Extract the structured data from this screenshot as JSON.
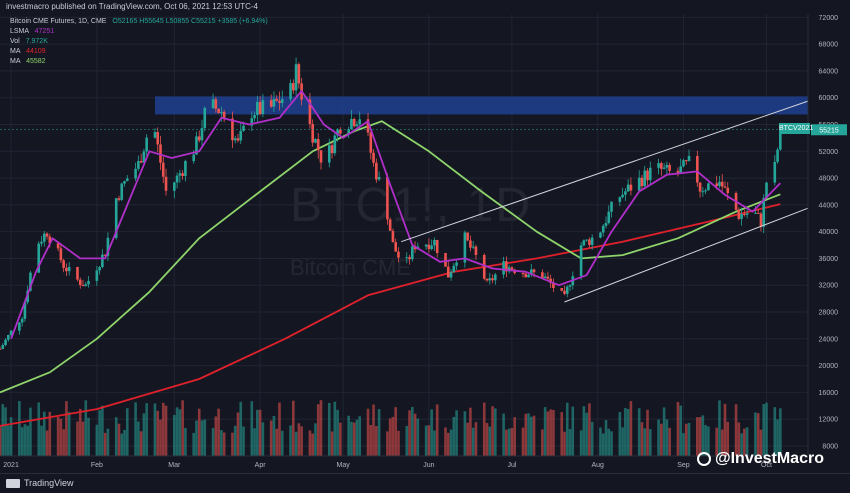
{
  "header": {
    "published": "investmacro published on TradingView.com, Oct 06, 2021 12:53 UTC-4"
  },
  "legend": {
    "title": "Bitcoin CME Futures, 1D, CME",
    "ohlc": "O52165 H55645 L50855 C55215 +3585 (+6.94%)",
    "lsma_label": "LSMA",
    "lsma_value": "47251",
    "vol_label": "Vol",
    "vol_value": "7.972K",
    "ma1_label": "MA",
    "ma1_value": "44109",
    "ma2_label": "MA",
    "ma2_value": "45582"
  },
  "watermark": {
    "symbol": "BTC1!, 1D",
    "name": "Bitcoin CME"
  },
  "price_tag": "BTCV2021",
  "brand": "@InvestMacro",
  "footer": {
    "logo_text": "TradingView"
  },
  "colors": {
    "background": "#141722",
    "up_candle": "#26a69a",
    "down_candle": "#ef5350",
    "lsma": "#b02fc9",
    "ma_fast": "#8fd46b",
    "ma_slow": "#e0212b",
    "resistance_box": "#1e3f8f",
    "channel": "#d1d4dc"
  },
  "chart_data": {
    "type": "candlestick",
    "x_ticks": [
      "2021",
      "Feb",
      "Mar",
      "Apr",
      "May",
      "Jun",
      "Jul",
      "Aug",
      "Sep",
      "Oct"
    ],
    "y_ticks": [
      8000,
      12000,
      16000,
      20000,
      24000,
      28000,
      32000,
      36000,
      40000,
      44000,
      48000,
      52000,
      56000,
      60000,
      64000,
      68000,
      72000
    ],
    "ylim": [
      6500,
      72500
    ],
    "last_price": 55215,
    "resistance_zone": [
      57500,
      60200
    ],
    "price_path": [
      {
        "d": "2020-12-28",
        "p": 22500
      },
      {
        "d": "2021-01-05",
        "p": 27500
      },
      {
        "d": "2021-01-10",
        "p": 38000
      },
      {
        "d": "2021-01-14",
        "p": 40000
      },
      {
        "d": "2021-01-20",
        "p": 35000
      },
      {
        "d": "2021-01-24",
        "p": 33000
      },
      {
        "d": "2021-01-28",
        "p": 32000
      },
      {
        "d": "2021-02-04",
        "p": 37000
      },
      {
        "d": "2021-02-08",
        "p": 45000
      },
      {
        "d": "2021-02-12",
        "p": 48000
      },
      {
        "d": "2021-02-16",
        "p": 50000
      },
      {
        "d": "2021-02-21",
        "p": 57000
      },
      {
        "d": "2021-02-26",
        "p": 46000
      },
      {
        "d": "2021-03-02",
        "p": 48000
      },
      {
        "d": "2021-03-09",
        "p": 53000
      },
      {
        "d": "2021-03-13",
        "p": 59000
      },
      {
        "d": "2021-03-18",
        "p": 58000
      },
      {
        "d": "2021-03-24",
        "p": 53000
      },
      {
        "d": "2021-03-29",
        "p": 58000
      },
      {
        "d": "2021-04-05",
        "p": 58500
      },
      {
        "d": "2021-04-12",
        "p": 61000
      },
      {
        "d": "2021-04-14",
        "p": 64000
      },
      {
        "d": "2021-04-18",
        "p": 57000
      },
      {
        "d": "2021-04-24",
        "p": 50000
      },
      {
        "d": "2021-04-30",
        "p": 56000
      },
      {
        "d": "2021-05-08",
        "p": 57500
      },
      {
        "d": "2021-05-12",
        "p": 50000
      },
      {
        "d": "2021-05-16",
        "p": 45000
      },
      {
        "d": "2021-05-19",
        "p": 38000
      },
      {
        "d": "2021-05-23",
        "p": 34500
      },
      {
        "d": "2021-05-27",
        "p": 38000
      },
      {
        "d": "2021-06-03",
        "p": 38500
      },
      {
        "d": "2021-06-08",
        "p": 33500
      },
      {
        "d": "2021-06-14",
        "p": 39000
      },
      {
        "d": "2021-06-19",
        "p": 35500
      },
      {
        "d": "2021-06-22",
        "p": 32000
      },
      {
        "d": "2021-06-28",
        "p": 35000
      },
      {
        "d": "2021-07-05",
        "p": 34000
      },
      {
        "d": "2021-07-12",
        "p": 33500
      },
      {
        "d": "2021-07-20",
        "p": 30000
      },
      {
        "d": "2021-07-26",
        "p": 38000
      },
      {
        "d": "2021-08-01",
        "p": 39500
      },
      {
        "d": "2021-08-08",
        "p": 45000
      },
      {
        "d": "2021-08-14",
        "p": 47000
      },
      {
        "d": "2021-08-22",
        "p": 49500
      },
      {
        "d": "2021-08-29",
        "p": 48500
      },
      {
        "d": "2021-09-04",
        "p": 50500
      },
      {
        "d": "2021-09-07",
        "p": 46500
      },
      {
        "d": "2021-09-14",
        "p": 47500
      },
      {
        "d": "2021-09-21",
        "p": 42500
      },
      {
        "d": "2021-09-26",
        "p": 43000
      },
      {
        "d": "2021-09-29",
        "p": 41500
      },
      {
        "d": "2021-10-01",
        "p": 47500
      },
      {
        "d": "2021-10-04",
        "p": 49500
      },
      {
        "d": "2021-10-06",
        "p": 55215
      }
    ],
    "lsma_path": [
      {
        "d": "2021-01-01",
        "p": 24000
      },
      {
        "d": "2021-01-10",
        "p": 34000
      },
      {
        "d": "2021-01-16",
        "p": 39000
      },
      {
        "d": "2021-01-26",
        "p": 36000
      },
      {
        "d": "2021-02-04",
        "p": 36000
      },
      {
        "d": "2021-02-12",
        "p": 44000
      },
      {
        "d": "2021-02-20",
        "p": 52000
      },
      {
        "d": "2021-02-28",
        "p": 51000
      },
      {
        "d": "2021-03-10",
        "p": 52000
      },
      {
        "d": "2021-03-18",
        "p": 57000
      },
      {
        "d": "2021-03-28",
        "p": 56000
      },
      {
        "d": "2021-04-08",
        "p": 57000
      },
      {
        "d": "2021-04-16",
        "p": 61000
      },
      {
        "d": "2021-04-24",
        "p": 56000
      },
      {
        "d": "2021-05-01",
        "p": 54000
      },
      {
        "d": "2021-05-10",
        "p": 56500
      },
      {
        "d": "2021-05-18",
        "p": 47000
      },
      {
        "d": "2021-05-26",
        "p": 38000
      },
      {
        "d": "2021-06-05",
        "p": 35500
      },
      {
        "d": "2021-06-14",
        "p": 36000
      },
      {
        "d": "2021-06-24",
        "p": 34500
      },
      {
        "d": "2021-07-06",
        "p": 34000
      },
      {
        "d": "2021-07-18",
        "p": 32000
      },
      {
        "d": "2021-07-28",
        "p": 33500
      },
      {
        "d": "2021-08-06",
        "p": 40000
      },
      {
        "d": "2021-08-16",
        "p": 46000
      },
      {
        "d": "2021-08-26",
        "p": 48500
      },
      {
        "d": "2021-09-06",
        "p": 49000
      },
      {
        "d": "2021-09-16",
        "p": 45500
      },
      {
        "d": "2021-09-26",
        "p": 43000
      },
      {
        "d": "2021-10-06",
        "p": 47251
      }
    ],
    "ma_fast_path": [
      {
        "d": "2020-12-28",
        "p": 16000
      },
      {
        "d": "2021-01-15",
        "p": 19000
      },
      {
        "d": "2021-02-01",
        "p": 24000
      },
      {
        "d": "2021-02-20",
        "p": 31000
      },
      {
        "d": "2021-03-10",
        "p": 39000
      },
      {
        "d": "2021-04-01",
        "p": 46000
      },
      {
        "d": "2021-04-20",
        "p": 52000
      },
      {
        "d": "2021-05-05",
        "p": 55000
      },
      {
        "d": "2021-05-15",
        "p": 56500
      },
      {
        "d": "2021-06-01",
        "p": 52000
      },
      {
        "d": "2021-06-20",
        "p": 46000
      },
      {
        "d": "2021-07-10",
        "p": 40000
      },
      {
        "d": "2021-07-26",
        "p": 36000
      },
      {
        "d": "2021-08-10",
        "p": 36500
      },
      {
        "d": "2021-08-30",
        "p": 39000
      },
      {
        "d": "2021-09-20",
        "p": 43000
      },
      {
        "d": "2021-10-06",
        "p": 45582
      }
    ],
    "ma_slow_path": [
      {
        "d": "2020-12-28",
        "p": 11000
      },
      {
        "d": "2021-02-01",
        "p": 13500
      },
      {
        "d": "2021-03-10",
        "p": 18000
      },
      {
        "d": "2021-04-10",
        "p": 24000
      },
      {
        "d": "2021-05-10",
        "p": 30500
      },
      {
        "d": "2021-06-10",
        "p": 34000
      },
      {
        "d": "2021-07-10",
        "p": 36000
      },
      {
        "d": "2021-08-10",
        "p": 38500
      },
      {
        "d": "2021-09-10",
        "p": 41500
      },
      {
        "d": "2021-10-06",
        "p": 44109
      }
    ],
    "channel_upper": [
      {
        "d": "2021-05-22",
        "p": 38500
      },
      {
        "d": "2021-10-16",
        "p": 59500
      }
    ],
    "channel_lower": [
      {
        "d": "2021-07-20",
        "p": 29500
      },
      {
        "d": "2021-10-16",
        "p": 43500
      }
    ]
  }
}
